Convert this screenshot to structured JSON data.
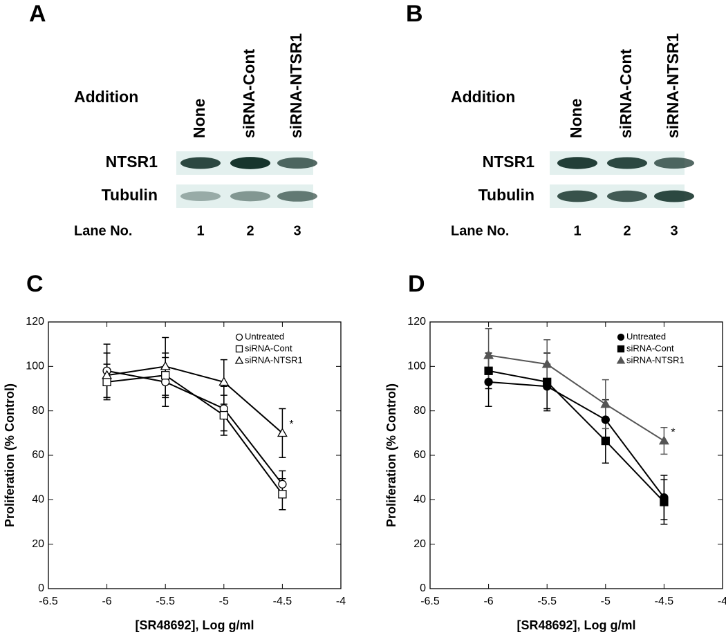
{
  "blots": [
    {
      "label": "A",
      "addition_label": "Addition",
      "lanes": [
        "None",
        "siRNA-Cont",
        "siRNA-NTSR1"
      ],
      "rows": [
        "NTSR1",
        "Tubulin"
      ],
      "lane_no_label": "Lane No.",
      "lane_numbers": [
        1,
        2,
        3
      ]
    },
    {
      "label": "B",
      "addition_label": "Addition",
      "lanes": [
        "None",
        "siRNA-Cont",
        "siRNA-NTSR1"
      ],
      "rows": [
        "NTSR1",
        "Tubulin"
      ],
      "lane_no_label": "Lane No.",
      "lane_numbers": [
        1,
        2,
        3
      ]
    }
  ],
  "chart_data": [
    {
      "type": "line",
      "panel": "C",
      "xlabel": "[SR48692], Log g/ml",
      "ylabel": "Proliferation (% Control)",
      "x": [
        -6,
        -5.5,
        -5,
        -4.5
      ],
      "xlim": [
        -6.5,
        -4
      ],
      "xticks": [
        -6.5,
        -6,
        -5.5,
        -5,
        -4.5,
        -4
      ],
      "ylim": [
        0,
        120
      ],
      "yticks": [
        0,
        20,
        40,
        60,
        80,
        100,
        120
      ],
      "annotation": "*",
      "series": [
        {
          "name": "Untreated",
          "color": "#000000",
          "marker": "circle",
          "filled": false,
          "values": [
            98,
            93,
            81,
            47
          ],
          "errors": [
            12,
            11,
            10,
            6
          ]
        },
        {
          "name": "siRNA-Cont",
          "color": "#000000",
          "marker": "square",
          "filled": false,
          "values": [
            93,
            96,
            78,
            42.5
          ],
          "errors": [
            8,
            10,
            9,
            7
          ]
        },
        {
          "name": "siRNA-NTSR1",
          "color": "#000000",
          "marker": "triangle",
          "filled": false,
          "values": [
            96,
            100,
            93,
            70
          ],
          "errors": [
            10,
            13,
            10,
            11
          ]
        }
      ]
    },
    {
      "type": "line",
      "panel": "D",
      "xlabel": "[SR48692], Log g/ml",
      "ylabel": "Proliferation (% Control)",
      "x": [
        -6,
        -5.5,
        -5,
        -4.5
      ],
      "xlim": [
        -6.5,
        -4
      ],
      "xticks": [
        -6.5,
        -6,
        -5.5,
        -5,
        -4.5,
        -4
      ],
      "ylim": [
        0,
        120
      ],
      "yticks": [
        0,
        20,
        40,
        60,
        80,
        100,
        120
      ],
      "annotation": "*",
      "series": [
        {
          "name": "Untreated",
          "color": "#000000",
          "marker": "circle",
          "filled": true,
          "values": [
            93,
            91,
            76,
            41
          ],
          "errors": [
            11,
            10,
            9,
            10
          ]
        },
        {
          "name": "siRNA-Cont",
          "color": "#000000",
          "marker": "square",
          "filled": true,
          "values": [
            98,
            93,
            66.5,
            39
          ],
          "errors": [
            8,
            13,
            10,
            10
          ]
        },
        {
          "name": "siRNA-NTSR1",
          "color": "#555555",
          "marker": "triangle",
          "filled": true,
          "values": [
            105,
            101,
            83,
            66.5
          ],
          "errors": [
            12,
            11,
            11,
            6
          ]
        }
      ]
    }
  ]
}
